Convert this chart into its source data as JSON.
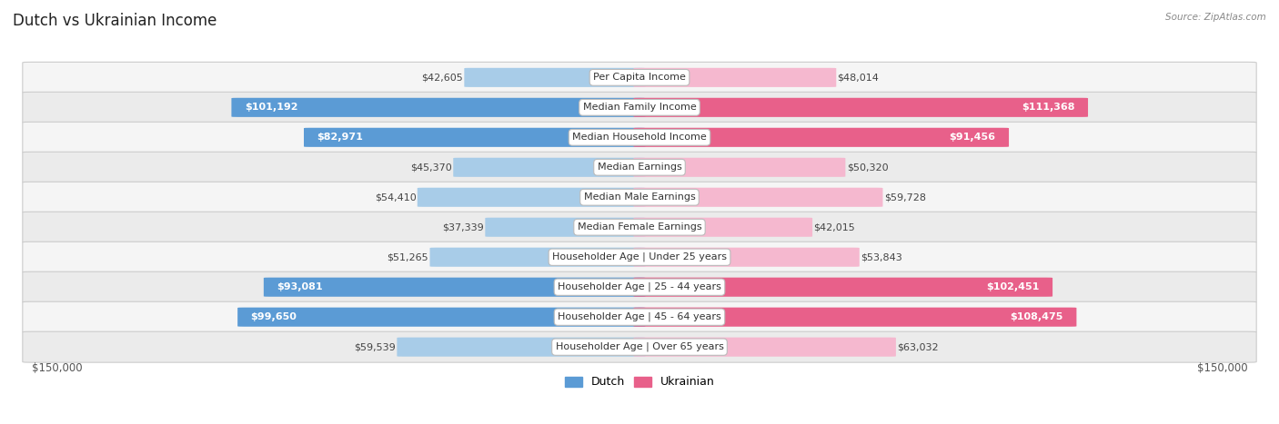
{
  "title": "Dutch vs Ukrainian Income",
  "source": "Source: ZipAtlas.com",
  "categories": [
    "Per Capita Income",
    "Median Family Income",
    "Median Household Income",
    "Median Earnings",
    "Median Male Earnings",
    "Median Female Earnings",
    "Householder Age | Under 25 years",
    "Householder Age | 25 - 44 years",
    "Householder Age | 45 - 64 years",
    "Householder Age | Over 65 years"
  ],
  "dutch_values": [
    42605,
    101192,
    82971,
    45370,
    54410,
    37339,
    51265,
    93081,
    99650,
    59539
  ],
  "ukrainian_values": [
    48014,
    111368,
    91456,
    50320,
    59728,
    42015,
    53843,
    102451,
    108475,
    63032
  ],
  "dutch_labels": [
    "$42,605",
    "$101,192",
    "$82,971",
    "$45,370",
    "$54,410",
    "$37,339",
    "$51,265",
    "$93,081",
    "$99,650",
    "$59,539"
  ],
  "ukrainian_labels": [
    "$48,014",
    "$111,368",
    "$91,456",
    "$50,320",
    "$59,728",
    "$42,015",
    "$53,843",
    "$102,451",
    "$108,475",
    "$63,032"
  ],
  "dutch_light": "#a8cce8",
  "dutch_dark": "#5b9bd5",
  "ukrainian_light": "#f5b8cf",
  "ukrainian_dark": "#e8608a",
  "dutch_label_inside": [
    false,
    true,
    true,
    false,
    false,
    false,
    false,
    true,
    true,
    false
  ],
  "ukrainian_label_inside": [
    false,
    true,
    true,
    false,
    false,
    false,
    false,
    true,
    true,
    false
  ],
  "max_val": 150000,
  "row_colors": [
    "#f5f5f5",
    "#ebebeb"
  ],
  "title_fontsize": 12,
  "label_fontsize": 8,
  "category_fontsize": 8,
  "axis_label": "$150,000"
}
